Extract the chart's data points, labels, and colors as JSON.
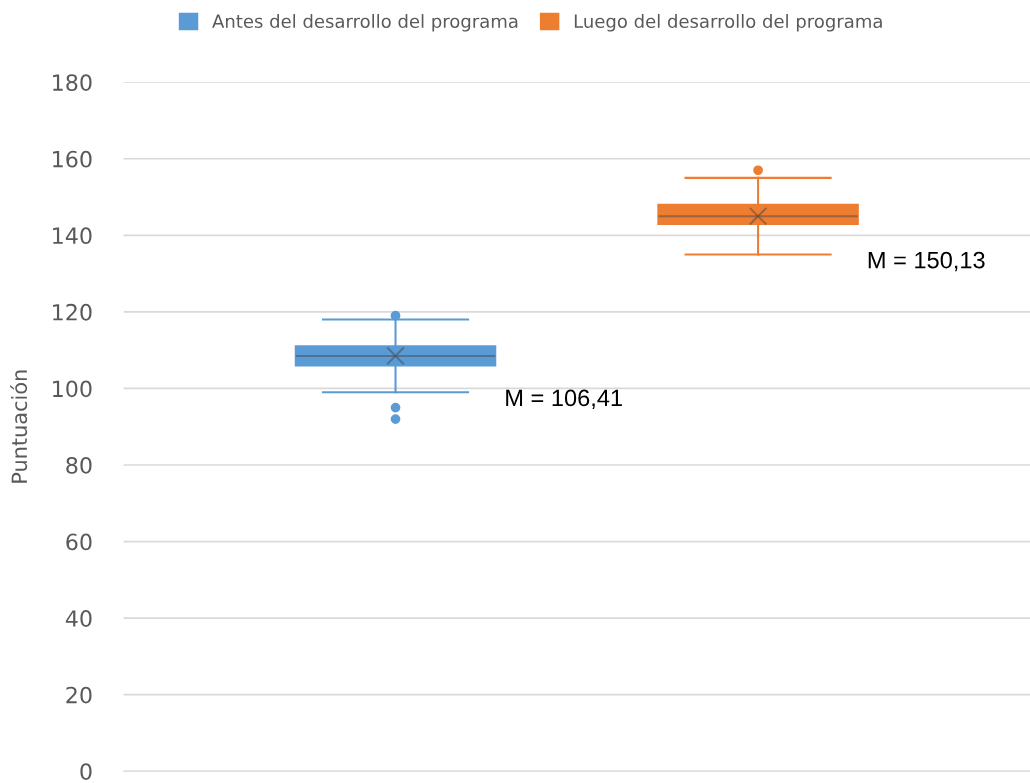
{
  "chart_data": {
    "type": "box",
    "ylabel": "Puntuación",
    "categories": [
      null
    ],
    "series": [
      {
        "name": "Antes del desarrollo del programa",
        "color": "#5b9bd5",
        "boxes": [
          {
            "low": 99,
            "q1": 106,
            "median": 108.5,
            "q3": 111,
            "high": 118,
            "mean": 108.5,
            "outliers": [
              119,
              95,
              92
            ]
          }
        ]
      },
      {
        "name": "Luego del desarrollo del programa",
        "color": "#ed7d31",
        "boxes": [
          {
            "low": 135,
            "q1": 143,
            "median": 145,
            "q3": 148,
            "high": 155,
            "mean": 145,
            "outliers": [
              157
            ]
          }
        ]
      }
    ],
    "annotations": [
      "M = 106,41",
      "M = 150,13"
    ],
    "ylim": [
      0,
      180
    ],
    "yticks": [
      0,
      20,
      40,
      60,
      80,
      100,
      120,
      140,
      160,
      180
    ],
    "grid": "y",
    "legend": "top",
    "tick_labels": "y"
  }
}
